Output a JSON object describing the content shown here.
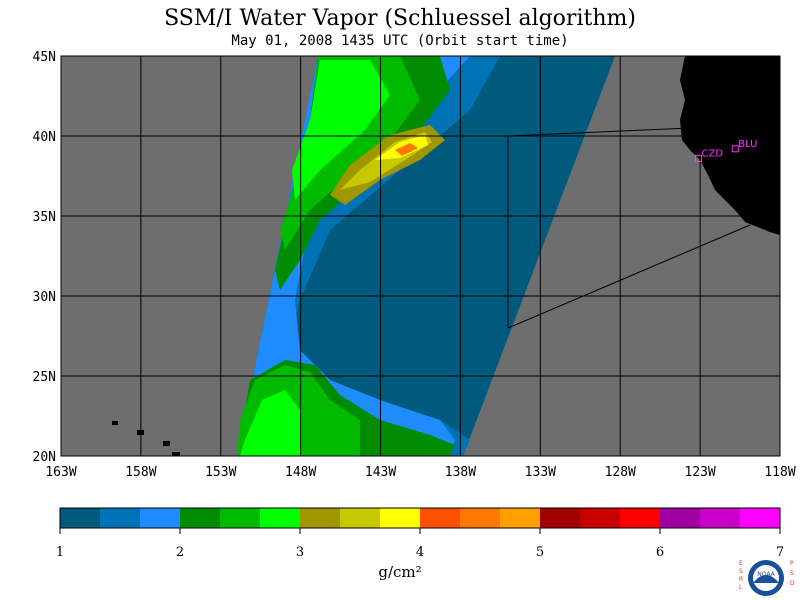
{
  "title": "SSM/I Water Vapor (Schluessel algorithm)",
  "subtitle": "May 01, 2008  1435 UTC  (Orbit start time)",
  "map": {
    "lon_range": [
      -163,
      -118
    ],
    "lat_range": [
      20,
      45
    ],
    "lon_ticks": [
      {
        "value": -163,
        "label": "163W"
      },
      {
        "value": -158,
        "label": "158W"
      },
      {
        "value": -153,
        "label": "153W"
      },
      {
        "value": -148,
        "label": "148W"
      },
      {
        "value": -143,
        "label": "143W"
      },
      {
        "value": -138,
        "label": "138W"
      },
      {
        "value": -133,
        "label": "133W"
      },
      {
        "value": -128,
        "label": "128W"
      },
      {
        "value": -123,
        "label": "123W"
      },
      {
        "value": -118,
        "label": "118W"
      }
    ],
    "lat_ticks": [
      {
        "value": 20,
        "label": "20N"
      },
      {
        "value": 25,
        "label": "25N"
      },
      {
        "value": 30,
        "label": "30N"
      },
      {
        "value": 35,
        "label": "35N"
      },
      {
        "value": 40,
        "label": "40N"
      },
      {
        "value": 45,
        "label": "45N"
      }
    ],
    "sites": [
      {
        "name": "CZD",
        "lon": -123.1,
        "lat": 38.6
      },
      {
        "name": "BLU",
        "lon": -120.8,
        "lat": 39.2
      }
    ],
    "colors": {
      "no_data": "#6e6e6e",
      "land": "#000000",
      "grid": "#000000"
    }
  },
  "colorbar": {
    "min": 1,
    "max": 7,
    "unit": "g/cm²",
    "labels": [
      "1",
      "2",
      "3",
      "4",
      "5",
      "6",
      "7"
    ],
    "colors": [
      "#005a7d",
      "#0073b7",
      "#1e8cff",
      "#008c00",
      "#00bb00",
      "#00ff00",
      "#a09600",
      "#c8c800",
      "#ffff00",
      "#ff5000",
      "#ff7800",
      "#ffa000",
      "#a00000",
      "#c80000",
      "#ff0000",
      "#a000a0",
      "#c800c8",
      "#ff00ff"
    ]
  },
  "logo": {
    "text": "NOAA",
    "left_letters": "ESRL",
    "right_letters": "PSD"
  }
}
